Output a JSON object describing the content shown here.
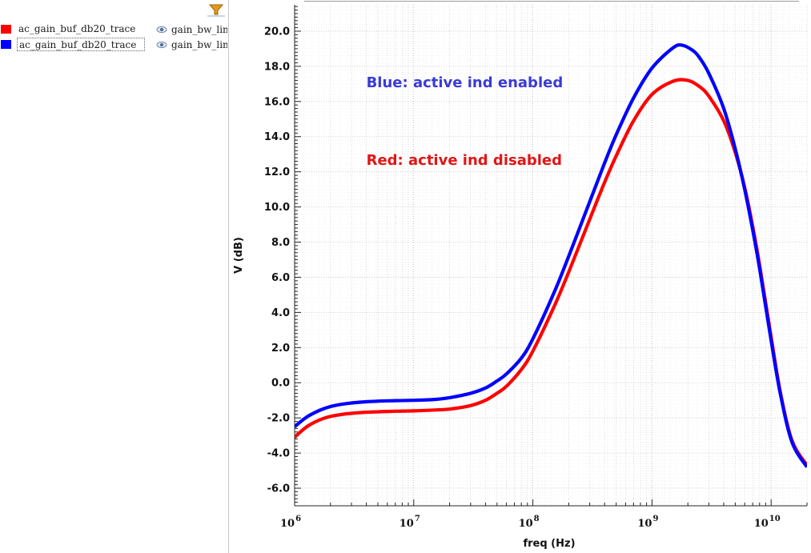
{
  "legend": {
    "traces": [
      {
        "name": "ac_gain_buf_db20_trace",
        "test": "gain_bw_linea",
        "color": "#ff0000",
        "selected": false
      },
      {
        "name": "ac_gain_buf_db20_trace",
        "test": "gain_bw_linea",
        "color": "#0000ff",
        "selected": true
      }
    ],
    "filter_icon": "funnel-icon",
    "visibility_icon": "eye-icon"
  },
  "chart_data": {
    "type": "line",
    "xlabel": "freq (Hz)",
    "ylabel": "V (dB)",
    "x_scale": "log",
    "xlim": [
      1000000,
      20000000000
    ],
    "ylim": [
      -7.0,
      21.5
    ],
    "x_ticks": [
      {
        "value": 1000000,
        "base": "10",
        "exp": "6"
      },
      {
        "value": 10000000,
        "base": "10",
        "exp": "7"
      },
      {
        "value": 100000000,
        "base": "10",
        "exp": "8"
      },
      {
        "value": 1000000000,
        "base": "10",
        "exp": "9"
      },
      {
        "value": 10000000000,
        "base": "10",
        "exp": "10"
      }
    ],
    "y_ticks": [
      "-6.0",
      "-4.0",
      "-2.0",
      "0.0",
      "2.0",
      "4.0",
      "6.0",
      "8.0",
      "10.0",
      "12.0",
      "14.0",
      "16.0",
      "18.0",
      "20.0"
    ],
    "grid": true,
    "series": [
      {
        "name": "ac_gain_buf_db20_trace",
        "color": "#ff0000",
        "points": [
          [
            1000000,
            -3.1
          ],
          [
            1300000,
            -2.45
          ],
          [
            1800000,
            -2.0
          ],
          [
            2500000,
            -1.8
          ],
          [
            4000000,
            -1.68
          ],
          [
            7000000,
            -1.62
          ],
          [
            10000000,
            -1.6
          ],
          [
            15000000,
            -1.55
          ],
          [
            20000000,
            -1.5
          ],
          [
            30000000,
            -1.3
          ],
          [
            40000000,
            -1.0
          ],
          [
            50000000,
            -0.6
          ],
          [
            60000000,
            -0.2
          ],
          [
            80000000,
            0.75
          ],
          [
            100000000,
            1.8
          ],
          [
            150000000,
            4.3
          ],
          [
            200000000,
            6.3
          ],
          [
            300000000,
            9.3
          ],
          [
            400000000,
            11.4
          ],
          [
            500000000,
            12.9
          ],
          [
            700000000,
            14.9
          ],
          [
            1000000000,
            16.4
          ],
          [
            1500000000,
            17.15
          ],
          [
            2000000000,
            17.2
          ],
          [
            2500000000,
            16.85
          ],
          [
            3000000000,
            16.3
          ],
          [
            4000000000,
            14.9
          ],
          [
            5000000000,
            13.1
          ],
          [
            6000000000,
            11.1
          ],
          [
            7000000000,
            8.9
          ],
          [
            8000000000,
            6.7
          ],
          [
            10000000000,
            2.6
          ],
          [
            12000000000,
            -0.6
          ],
          [
            15000000000,
            -3.3
          ],
          [
            20000000000,
            -4.7
          ]
        ]
      },
      {
        "name": "ac_gain_buf_db20_trace",
        "color": "#0000ff",
        "points": [
          [
            1000000,
            -2.5
          ],
          [
            1300000,
            -1.9
          ],
          [
            1800000,
            -1.45
          ],
          [
            2500000,
            -1.22
          ],
          [
            4000000,
            -1.08
          ],
          [
            7000000,
            -1.02
          ],
          [
            10000000,
            -1.0
          ],
          [
            15000000,
            -0.95
          ],
          [
            20000000,
            -0.85
          ],
          [
            30000000,
            -0.6
          ],
          [
            40000000,
            -0.3
          ],
          [
            50000000,
            0.1
          ],
          [
            60000000,
            0.5
          ],
          [
            80000000,
            1.4
          ],
          [
            100000000,
            2.5
          ],
          [
            150000000,
            5.1
          ],
          [
            200000000,
            7.2
          ],
          [
            300000000,
            10.3
          ],
          [
            400000000,
            12.5
          ],
          [
            500000000,
            14.1
          ],
          [
            700000000,
            16.2
          ],
          [
            1000000000,
            17.9
          ],
          [
            1500000000,
            19.05
          ],
          [
            1800000000,
            19.2
          ],
          [
            2200000000,
            18.9
          ],
          [
            2500000000,
            18.5
          ],
          [
            3000000000,
            17.6
          ],
          [
            4000000000,
            15.6
          ],
          [
            5000000000,
            13.3
          ],
          [
            6000000000,
            11.0
          ],
          [
            7000000000,
            8.7
          ],
          [
            8000000000,
            6.5
          ],
          [
            10000000000,
            2.4
          ],
          [
            12000000000,
            -0.7
          ],
          [
            15000000000,
            -3.4
          ],
          [
            20000000000,
            -4.8
          ]
        ]
      }
    ],
    "annotations": [
      {
        "text": "Blue: active ind enabled",
        "color": "#3a3ad6",
        "at_x": 4000000,
        "at_y": 16.8
      },
      {
        "text": "Red: active ind disabled",
        "color": "#e01616",
        "at_x": 4000000,
        "at_y": 12.4
      }
    ]
  }
}
